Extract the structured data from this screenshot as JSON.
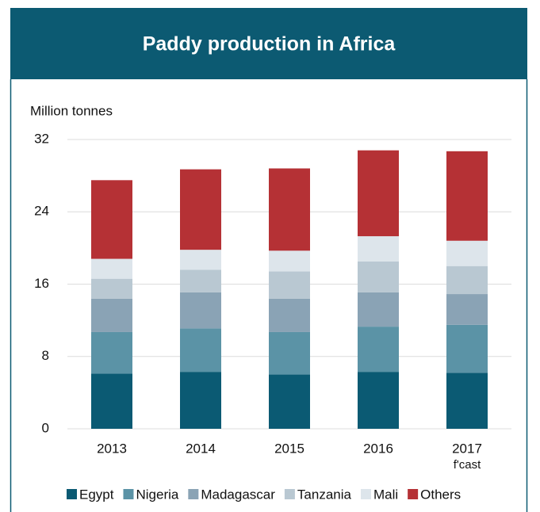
{
  "chart_data": {
    "type": "stacked-bar",
    "title": "Paddy production in Africa",
    "y_label": "Million tonnes",
    "categories": [
      "2013",
      "2014",
      "2015",
      "2016",
      "2017"
    ],
    "annotation": "f'cast",
    "series": [
      {
        "name": "Egypt",
        "color": "#0b5a73",
        "values": [
          6.1,
          6.3,
          6.0,
          6.3,
          6.2
        ]
      },
      {
        "name": "Nigeria",
        "color": "#5b93a6",
        "values": [
          4.6,
          4.8,
          4.7,
          5.0,
          5.3
        ]
      },
      {
        "name": "Madagascar",
        "color": "#8aa3b5",
        "values": [
          3.7,
          4.0,
          3.7,
          3.8,
          3.4
        ]
      },
      {
        "name": "Tanzania",
        "color": "#b9c8d2",
        "values": [
          2.2,
          2.5,
          3.0,
          3.4,
          3.1
        ]
      },
      {
        "name": "Mali",
        "color": "#dde5eb",
        "values": [
          2.2,
          2.2,
          2.3,
          2.8,
          2.8
        ]
      },
      {
        "name": "Others",
        "color": "#b53135",
        "values": [
          8.7,
          8.9,
          9.1,
          9.5,
          9.9
        ]
      }
    ],
    "ylim": [
      0,
      32
    ],
    "yticks": [
      0,
      8,
      16,
      24,
      32
    ],
    "grid": true
  }
}
